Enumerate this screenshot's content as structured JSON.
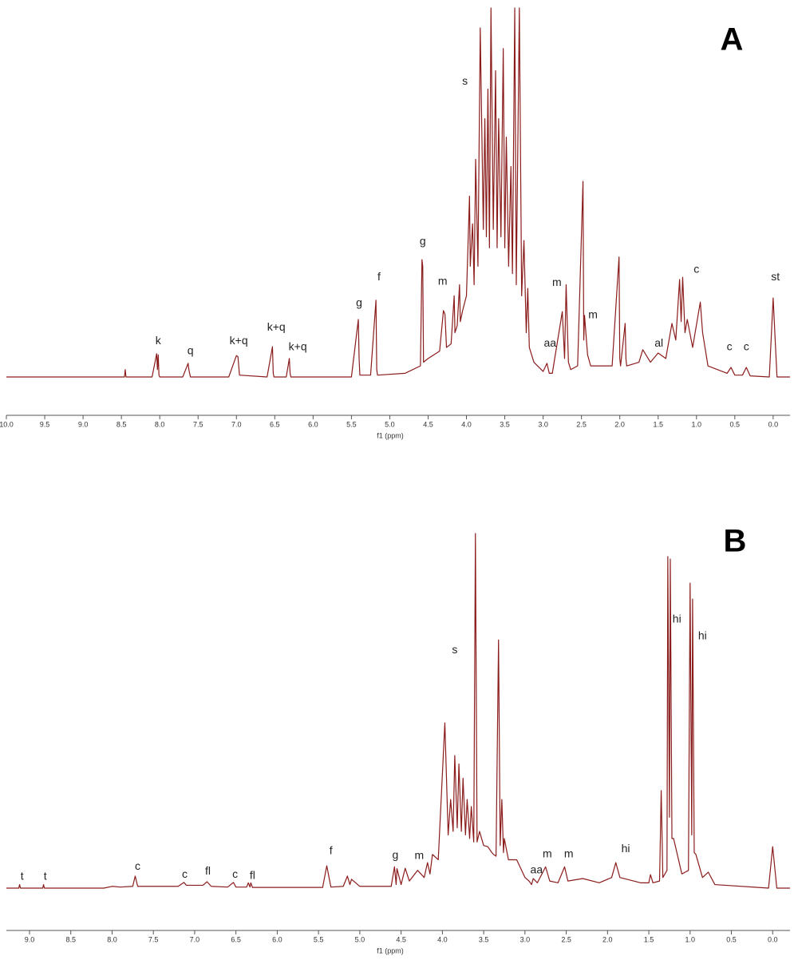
{
  "chart_data": [
    {
      "type": "line",
      "label": "A",
      "xlabel": "f1 (ppm)",
      "color": "#8b1c1c",
      "xlim": [
        10.0,
        -0.22
      ],
      "ylim": [
        0,
        100
      ],
      "xticks": [
        {
          "value": 10,
          "label": "10.0"
        },
        9.5,
        {
          "value": 9,
          "label": "9.0"
        },
        8.5,
        {
          "value": 8,
          "label": "8.0"
        },
        7.5,
        {
          "value": 7,
          "label": "7.0"
        },
        6.5,
        {
          "value": 6,
          "label": "6.0"
        },
        5.5,
        {
          "value": 5,
          "label": "5.0"
        },
        4.5,
        {
          "value": 4,
          "label": "4.0"
        },
        3.5,
        {
          "value": 3,
          "label": "3.0"
        },
        2.5,
        {
          "value": 2,
          "label": "2.0"
        },
        1.5,
        {
          "value": 1,
          "label": "1.0"
        },
        0.5,
        {
          "value": 0,
          "label": "0.0"
        }
      ],
      "x": [
        10.0,
        8.5,
        8.46,
        8.45,
        8.44,
        8.1,
        8.04,
        8.03,
        8.02,
        8.01,
        8.0,
        7.7,
        7.63,
        7.62,
        7.6,
        7.1,
        7.0,
        6.98,
        6.96,
        6.6,
        6.53,
        6.52,
        6.51,
        6.35,
        6.31,
        6.3,
        6.29,
        5.5,
        5.41,
        5.4,
        5.39,
        5.25,
        5.18,
        5.17,
        5.16,
        4.8,
        4.6,
        4.58,
        4.57,
        4.56,
        4.5,
        4.35,
        4.3,
        4.28,
        4.26,
        4.2,
        4.16,
        4.15,
        4.12,
        4.09,
        4.08,
        4.05,
        4.0,
        3.96,
        3.95,
        3.92,
        3.9,
        3.88,
        3.85,
        3.82,
        3.78,
        3.76,
        3.74,
        3.72,
        3.7,
        3.68,
        3.65,
        3.62,
        3.6,
        3.58,
        3.55,
        3.52,
        3.5,
        3.48,
        3.45,
        3.42,
        3.4,
        3.37,
        3.35,
        3.31,
        3.28,
        3.25,
        3.22,
        3.2,
        3.18,
        3.12,
        3.0,
        2.95,
        2.92,
        2.88,
        2.75,
        2.72,
        2.7,
        2.67,
        2.64,
        2.55,
        2.48,
        2.47,
        2.46,
        2.42,
        2.38,
        2.1,
        2.01,
        2.0,
        1.99,
        1.93,
        1.92,
        1.91,
        1.75,
        1.7,
        1.6,
        1.5,
        1.4,
        1.32,
        1.27,
        1.22,
        1.2,
        1.18,
        1.15,
        1.12,
        1.05,
        0.95,
        0.92,
        0.85,
        0.6,
        0.55,
        0.5,
        0.4,
        0.35,
        0.3,
        0.05,
        0.0,
        -0.05,
        -0.22
      ],
      "values": [
        0,
        0,
        0,
        2,
        0,
        0,
        6.3,
        2,
        6,
        0.5,
        0,
        0,
        3.7,
        2,
        0,
        0,
        5.8,
        5.5,
        0.5,
        0,
        8.2,
        1,
        0,
        0,
        5,
        1,
        0,
        0,
        15.6,
        5,
        0.5,
        0.5,
        20.8,
        2,
        0.5,
        1,
        3,
        31.8,
        30,
        4,
        5,
        7,
        18,
        17,
        8,
        9,
        22,
        12,
        14,
        25,
        15,
        18,
        22,
        49,
        30,
        41.5,
        25,
        59,
        30,
        94.6,
        40,
        70,
        38,
        78,
        35,
        100,
        40,
        83,
        35,
        70,
        38,
        89,
        35,
        65,
        30,
        57,
        28,
        100,
        25,
        100,
        22,
        37,
        12,
        24,
        8,
        4,
        1.5,
        3.7,
        1,
        1,
        17.7,
        5,
        25,
        4,
        2,
        3,
        53,
        10,
        16.7,
        6,
        3,
        3,
        32.5,
        5,
        3,
        14.5,
        5,
        3,
        4,
        7.4,
        4,
        6.5,
        5,
        14.5,
        10,
        26.4,
        15,
        27,
        12,
        15.6,
        8,
        20.3,
        12,
        3,
        1,
        2.6,
        0.5,
        0.5,
        2.6,
        0.3,
        0,
        21.4,
        0,
        0
      ],
      "annotations": [
        {
          "text": "k",
          "x": 8.02,
          "y": 9.7
        },
        {
          "text": "q",
          "x": 7.6,
          "y": 7
        },
        {
          "text": "k+q",
          "x": 6.97,
          "y": 9.7
        },
        {
          "text": "k+q",
          "x": 6.48,
          "y": 13.4
        },
        {
          "text": "k+q",
          "x": 6.2,
          "y": 8
        },
        {
          "text": "g",
          "x": 5.4,
          "y": 20
        },
        {
          "text": "f",
          "x": 5.14,
          "y": 27
        },
        {
          "text": "g",
          "x": 4.57,
          "y": 36.6
        },
        {
          "text": "m",
          "x": 4.31,
          "y": 25.8
        },
        {
          "text": "s",
          "x": 4.02,
          "y": 80
        },
        {
          "text": "aa",
          "x": 2.91,
          "y": 9
        },
        {
          "text": "m",
          "x": 2.82,
          "y": 25.5
        },
        {
          "text": "m",
          "x": 2.35,
          "y": 16.7
        },
        {
          "text": "al",
          "x": 1.49,
          "y": 9
        },
        {
          "text": "c",
          "x": 1.0,
          "y": 29
        },
        {
          "text": "c",
          "x": 0.57,
          "y": 8
        },
        {
          "text": "c",
          "x": 0.35,
          "y": 8
        },
        {
          "text": "st",
          "x": -0.03,
          "y": 27
        }
      ]
    },
    {
      "type": "line",
      "label": "B",
      "xlabel": "f1 (ppm)",
      "color": "#8b1c1c",
      "xlim": [
        9.28,
        -0.21
      ],
      "ylim": [
        0,
        100
      ],
      "xticks": [
        {
          "value": 9,
          "label": "9.0"
        },
        8.5,
        {
          "value": 8,
          "label": "8.0"
        },
        7.5,
        {
          "value": 7,
          "label": "7.0"
        },
        6.5,
        {
          "value": 6,
          "label": "6.0"
        },
        5.5,
        {
          "value": 5,
          "label": "5.0"
        },
        4.5,
        {
          "value": 4,
          "label": "4.0"
        },
        3.5,
        {
          "value": 3,
          "label": "3.0"
        },
        2.5,
        {
          "value": 2,
          "label": "2.0"
        },
        1.5,
        {
          "value": 1,
          "label": "1.0"
        },
        0.5,
        {
          "value": 0,
          "label": "0.0"
        }
      ],
      "x": [
        9.28,
        9.13,
        9.12,
        9.11,
        8.84,
        8.83,
        8.82,
        8.1,
        8.0,
        7.9,
        7.75,
        7.72,
        7.69,
        7.2,
        7.13,
        7.1,
        7.0,
        6.9,
        6.85,
        6.8,
        6.6,
        6.53,
        6.5,
        6.37,
        6.35,
        6.33,
        6.32,
        6.3,
        5.45,
        5.4,
        5.35,
        5.2,
        5.15,
        5.12,
        5.1,
        5.0,
        4.62,
        4.58,
        4.56,
        4.55,
        4.5,
        4.45,
        4.4,
        4.3,
        4.22,
        4.18,
        4.15,
        4.12,
        4.05,
        3.97,
        3.93,
        3.9,
        3.87,
        3.85,
        3.82,
        3.8,
        3.77,
        3.75,
        3.72,
        3.7,
        3.67,
        3.65,
        3.62,
        3.6,
        3.58,
        3.55,
        3.5,
        3.45,
        3.4,
        3.38,
        3.35,
        3.32,
        3.3,
        3.28,
        3.26,
        3.25,
        3.2,
        3.1,
        3.0,
        2.95,
        2.92,
        2.9,
        2.85,
        2.75,
        2.7,
        2.6,
        2.52,
        2.48,
        2.3,
        2.1,
        1.95,
        1.9,
        1.85,
        1.6,
        1.5,
        1.48,
        1.45,
        1.37,
        1.35,
        1.33,
        1.28,
        1.27,
        1.25,
        1.24,
        1.22,
        1.2,
        1.1,
        1.02,
        1.0,
        0.98,
        0.97,
        0.95,
        0.93,
        0.85,
        0.78,
        0.7,
        0.05,
        0.0,
        -0.05,
        -0.21
      ],
      "values": [
        0,
        0,
        1,
        0,
        0,
        1,
        0,
        0,
        0.5,
        0.3,
        0.5,
        3.4,
        0.5,
        0.5,
        1.6,
        0.8,
        0.8,
        0.8,
        1.8,
        0.5,
        0.3,
        1.6,
        0.3,
        0.3,
        1.5,
        0.3,
        1.5,
        0.2,
        0.2,
        6.3,
        0.3,
        0.5,
        3.4,
        1,
        2.5,
        0.5,
        0.5,
        6,
        1,
        5.5,
        1,
        5.6,
        2,
        5,
        3,
        7.2,
        4,
        9.5,
        8,
        46.6,
        15,
        25,
        16,
        37.4,
        17,
        35,
        16,
        31,
        15,
        25,
        14,
        23,
        13,
        100,
        13,
        16,
        12,
        11.7,
        10,
        9.5,
        9,
        70,
        12,
        25,
        10,
        14,
        8,
        8,
        3,
        2,
        1,
        2.7,
        1.5,
        6,
        2,
        1.5,
        6,
        2,
        2.7,
        1.5,
        3,
        7.2,
        3,
        1.5,
        1.5,
        3.8,
        1.5,
        2,
        27.5,
        3,
        5,
        93.5,
        20,
        92.8,
        14,
        14,
        4,
        5,
        86,
        15,
        81.5,
        10,
        9.5,
        3,
        4.5,
        1,
        0,
        11.7,
        0,
        0
      ],
      "annotations": [
        {
          "text": "t",
          "x": 9.09,
          "y": 3.2
        },
        {
          "text": "t",
          "x": 8.81,
          "y": 3.2
        },
        {
          "text": "c",
          "x": 7.69,
          "y": 6
        },
        {
          "text": "c",
          "x": 7.12,
          "y": 3.8
        },
        {
          "text": "fl",
          "x": 6.84,
          "y": 4.7
        },
        {
          "text": "c",
          "x": 6.51,
          "y": 3.8
        },
        {
          "text": "fl",
          "x": 6.3,
          "y": 3.4
        },
        {
          "text": "f",
          "x": 5.35,
          "y": 10.4
        },
        {
          "text": "g",
          "x": 4.57,
          "y": 9.2
        },
        {
          "text": "m",
          "x": 4.28,
          "y": 9
        },
        {
          "text": "s",
          "x": 3.85,
          "y": 67
        },
        {
          "text": "aa",
          "x": 2.86,
          "y": 5
        },
        {
          "text": "m",
          "x": 2.73,
          "y": 9.5
        },
        {
          "text": "m",
          "x": 2.47,
          "y": 9.5
        },
        {
          "text": "hi",
          "x": 1.78,
          "y": 11
        },
        {
          "text": "hi",
          "x": 1.16,
          "y": 75.7
        },
        {
          "text": "hi",
          "x": 0.85,
          "y": 71
        }
      ]
    }
  ]
}
